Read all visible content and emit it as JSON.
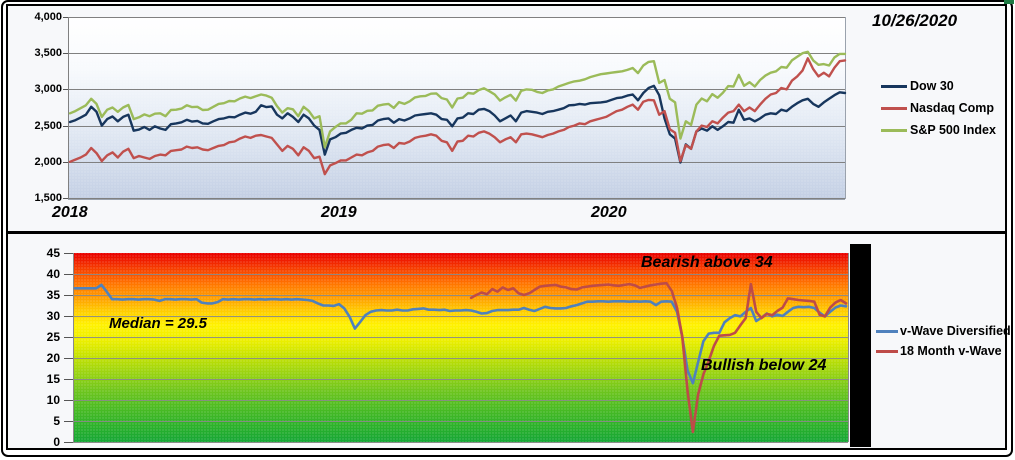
{
  "date_label": "10/26/2020",
  "accent_colors": {
    "dow": "#17365D",
    "nasdaq": "#C0504D",
    "sp500": "#9BBB59",
    "vwave_diversified": "#4F81BD",
    "vwave_18month": "#BE4B48",
    "gridline": "#808080",
    "panel_border": "#000000",
    "corner_mark_green": "#1F7A44"
  },
  "chart_data": [
    {
      "id": "index-chart",
      "type": "line",
      "title": "",
      "xlabel": "",
      "ylabel": "",
      "x_axis": {
        "labels": [
          "2018",
          "2019",
          "2020"
        ],
        "unit": "weeks"
      },
      "y_axis": {
        "tick_labels": [
          "4,000",
          "3,500",
          "3,000",
          "2,500",
          "2,000",
          "1,500"
        ],
        "tick_values": [
          4000,
          3500,
          3000,
          2500,
          2000,
          1500
        ],
        "ylim": [
          1500,
          4000
        ],
        "grid": true
      },
      "legend_position": "right",
      "plot_background_stops": [
        {
          "o": 0,
          "c": "#FFFFFF"
        },
        {
          "o": 0.28,
          "c": "#F8FAFD"
        },
        {
          "o": 0.6,
          "c": "#E3EAF4"
        },
        {
          "o": 1,
          "c": "#C3CFE4"
        }
      ],
      "series": [
        {
          "name": "Dow 30",
          "color": "#17365D",
          "values": [
            2550,
            2575,
            2610,
            2650,
            2760,
            2690,
            2500,
            2590,
            2625,
            2560,
            2620,
            2650,
            2430,
            2445,
            2480,
            2440,
            2490,
            2460,
            2440,
            2520,
            2530,
            2545,
            2580,
            2555,
            2565,
            2530,
            2525,
            2560,
            2590,
            2600,
            2620,
            2615,
            2650,
            2680,
            2665,
            2690,
            2780,
            2755,
            2765,
            2650,
            2600,
            2670,
            2620,
            2550,
            2650,
            2600,
            2500,
            2440,
            2100,
            2310,
            2340,
            2390,
            2400,
            2440,
            2470,
            2460,
            2500,
            2510,
            2570,
            2590,
            2600,
            2540,
            2590,
            2570,
            2600,
            2640,
            2650,
            2660,
            2670,
            2650,
            2590,
            2580,
            2490,
            2600,
            2610,
            2670,
            2660,
            2720,
            2730,
            2700,
            2640,
            2560,
            2600,
            2640,
            2560,
            2680,
            2700,
            2690,
            2680,
            2660,
            2690,
            2700,
            2720,
            2740,
            2780,
            2785,
            2800,
            2790,
            2810,
            2815,
            2820,
            2830,
            2855,
            2880,
            2890,
            2915,
            2930,
            2850,
            2950,
            3020,
            3050,
            2920,
            2600,
            2380,
            2320,
            1990,
            2240,
            2180,
            2420,
            2460,
            2430,
            2490,
            2440,
            2490,
            2550,
            2540,
            2720,
            2580,
            2600,
            2560,
            2600,
            2650,
            2670,
            2660,
            2720,
            2700,
            2760,
            2810,
            2850,
            2870,
            2800,
            2760,
            2820,
            2870,
            2920,
            2960,
            2950
          ]
        },
        {
          "name": "Nasdaq Comp",
          "color": "#C0504D",
          "values": [
            2000,
            2030,
            2060,
            2100,
            2190,
            2120,
            2010,
            2090,
            2130,
            2060,
            2140,
            2180,
            2050,
            2080,
            2060,
            2040,
            2080,
            2100,
            2090,
            2150,
            2160,
            2170,
            2210,
            2190,
            2200,
            2170,
            2160,
            2190,
            2220,
            2230,
            2270,
            2280,
            2320,
            2350,
            2330,
            2360,
            2370,
            2350,
            2330,
            2240,
            2150,
            2220,
            2180,
            2090,
            2200,
            2150,
            2050,
            2070,
            1830,
            1950,
            1980,
            2020,
            2020,
            2060,
            2100,
            2090,
            2130,
            2150,
            2210,
            2230,
            2240,
            2190,
            2260,
            2250,
            2280,
            2330,
            2350,
            2360,
            2380,
            2360,
            2290,
            2270,
            2150,
            2280,
            2290,
            2360,
            2350,
            2400,
            2420,
            2390,
            2340,
            2270,
            2310,
            2340,
            2270,
            2380,
            2390,
            2380,
            2360,
            2340,
            2370,
            2390,
            2420,
            2440,
            2480,
            2500,
            2530,
            2520,
            2560,
            2580,
            2600,
            2620,
            2660,
            2700,
            2720,
            2760,
            2790,
            2720,
            2830,
            2855,
            2850,
            2650,
            2700,
            2450,
            2400,
            2010,
            2230,
            2180,
            2420,
            2500,
            2480,
            2560,
            2530,
            2610,
            2680,
            2700,
            2790,
            2700,
            2750,
            2700,
            2790,
            2870,
            2930,
            2950,
            3020,
            3000,
            3120,
            3180,
            3260,
            3430,
            3280,
            3180,
            3230,
            3180,
            3300,
            3390,
            3400
          ]
        },
        {
          "name": "S&P 500 Index",
          "color": "#9BBB59",
          "values": [
            2670,
            2700,
            2740,
            2780,
            2870,
            2800,
            2620,
            2720,
            2750,
            2690,
            2750,
            2785,
            2590,
            2615,
            2655,
            2630,
            2665,
            2670,
            2630,
            2715,
            2720,
            2735,
            2780,
            2755,
            2760,
            2715,
            2720,
            2760,
            2800,
            2810,
            2840,
            2835,
            2875,
            2900,
            2880,
            2905,
            2930,
            2915,
            2885,
            2770,
            2680,
            2740,
            2725,
            2630,
            2760,
            2700,
            2600,
            2630,
            2200,
            2420,
            2480,
            2530,
            2530,
            2580,
            2670,
            2665,
            2705,
            2710,
            2775,
            2790,
            2800,
            2745,
            2825,
            2800,
            2835,
            2890,
            2905,
            2910,
            2940,
            2945,
            2880,
            2860,
            2750,
            2875,
            2885,
            2950,
            2940,
            2990,
            3015,
            2975,
            2930,
            2845,
            2890,
            2925,
            2845,
            2980,
            3000,
            2995,
            2965,
            2950,
            2985,
            3000,
            3040,
            3065,
            3090,
            3110,
            3120,
            3140,
            3170,
            3190,
            3210,
            3220,
            3230,
            3240,
            3250,
            3270,
            3295,
            3225,
            3330,
            3380,
            3390,
            3090,
            3130,
            2870,
            2820,
            2320,
            2560,
            2510,
            2790,
            2875,
            2835,
            2935,
            2885,
            2955,
            3045,
            3040,
            3200,
            3050,
            3100,
            3040,
            3130,
            3190,
            3230,
            3250,
            3310,
            3300,
            3400,
            3450,
            3500,
            3520,
            3400,
            3340,
            3350,
            3330,
            3440,
            3490,
            3490
          ]
        }
      ]
    },
    {
      "id": "v-wave-chart",
      "type": "line",
      "title": "",
      "y_axis": {
        "tick_labels": [
          "45",
          "40",
          "35",
          "30",
          "25",
          "20",
          "15",
          "10",
          "5",
          "0"
        ],
        "tick_values": [
          45,
          40,
          35,
          30,
          25,
          20,
          15,
          10,
          5,
          0
        ],
        "ylim": [
          0,
          45
        ],
        "grid": true
      },
      "legend_position": "right",
      "annotations": [
        {
          "id": "bearish",
          "text": "Bearish above 34",
          "y_value": 42
        },
        {
          "id": "median",
          "text": "Median = 29.5",
          "y_value": 28
        },
        {
          "id": "bullish",
          "text": "Bullish below 24",
          "y_value": 19
        }
      ],
      "plot_background_stops": [
        {
          "o": 0,
          "c": "#E80000"
        },
        {
          "o": 0.08,
          "c": "#F63C00"
        },
        {
          "o": 0.16,
          "c": "#FF7300"
        },
        {
          "o": 0.24,
          "c": "#FFA000"
        },
        {
          "o": 0.31,
          "c": "#FFCE00"
        },
        {
          "o": 0.38,
          "c": "#FFF200"
        },
        {
          "o": 0.46,
          "c": "#EDEF00"
        },
        {
          "o": 0.54,
          "c": "#C8E300"
        },
        {
          "o": 0.63,
          "c": "#9CD411"
        },
        {
          "o": 0.73,
          "c": "#6EC51E"
        },
        {
          "o": 0.83,
          "c": "#48BA24"
        },
        {
          "o": 0.92,
          "c": "#2BB12B"
        },
        {
          "o": 1,
          "c": "#16A636"
        }
      ],
      "series": [
        {
          "name": "v-Wave Diversified",
          "color": "#4F81BD",
          "start_index": 0,
          "values": [
            36.6,
            36.6,
            36.6,
            36.6,
            36.6,
            37.4,
            35.8,
            34.0,
            34.0,
            33.9,
            34.0,
            34.0,
            33.9,
            34.0,
            34.0,
            33.9,
            33.6,
            34.0,
            34.0,
            33.9,
            34.0,
            34.0,
            33.9,
            34.0,
            33.2,
            33.0,
            33.0,
            33.3,
            34.0,
            33.9,
            34.0,
            33.9,
            34.0,
            34.0,
            33.9,
            34.0,
            33.9,
            34.0,
            34.0,
            33.9,
            34.0,
            33.9,
            34.0,
            33.9,
            33.8,
            33.6,
            33.0,
            32.5,
            32.5,
            32.4,
            32.8,
            31.8,
            29.8,
            27.0,
            28.6,
            30.2,
            31.0,
            31.3,
            31.4,
            31.3,
            31.3,
            31.5,
            31.3,
            31.3,
            31.6,
            31.7,
            31.8,
            31.5,
            31.5,
            31.4,
            31.5,
            31.2,
            31.3,
            31.3,
            31.4,
            31.3,
            31.0,
            30.6,
            30.7,
            31.2,
            31.4,
            31.4,
            31.4,
            31.5,
            31.5,
            31.9,
            31.5,
            31.2,
            31.7,
            32.2,
            31.9,
            31.8,
            31.8,
            31.9,
            32.3,
            32.6,
            33.0,
            33.4,
            33.4,
            33.5,
            33.5,
            33.4,
            33.5,
            33.5,
            33.5,
            33.4,
            33.5,
            33.4,
            33.5,
            33.4,
            32.6,
            33.4,
            33.5,
            33.4,
            31.0,
            25.0,
            17.0,
            14.0,
            19.0,
            24.0,
            25.8,
            26.0,
            26.0,
            28.5,
            29.5,
            30.2,
            29.9,
            31.0,
            31.9,
            28.8,
            29.6,
            30.6,
            29.9,
            30.3,
            30.0,
            31.0,
            31.9,
            32.2,
            32.1,
            32.2,
            31.9,
            30.8,
            29.9,
            31.0,
            32.0,
            32.5,
            32.3
          ]
        },
        {
          "name": "18 Month v-Wave",
          "color": "#BE4B48",
          "start_index": 75,
          "values": [
            34.3,
            35.0,
            35.6,
            35.2,
            36.4,
            35.8,
            36.8,
            36.2,
            36.6,
            35.4,
            35.0,
            35.4,
            36.2,
            37.0,
            37.2,
            37.3,
            37.4,
            37.0,
            36.8,
            36.4,
            36.3,
            36.8,
            37.0,
            37.2,
            37.3,
            37.4,
            37.5,
            37.3,
            37.2,
            37.4,
            37.6,
            37.3,
            36.7,
            37.0,
            37.3,
            37.5,
            37.7,
            37.8,
            36.0,
            32.0,
            25.0,
            12.0,
            2.4,
            11.3,
            16.1,
            19.3,
            22.9,
            25.3,
            25.4,
            25.5,
            26.0,
            27.8,
            29.5,
            37.6,
            31.0,
            29.5,
            30.5,
            30.2,
            31.2,
            32.0,
            34.2,
            34.0,
            33.8,
            33.7,
            33.6,
            33.4,
            30.3,
            29.9,
            32.0,
            33.2,
            33.8,
            33.0
          ]
        }
      ]
    }
  ]
}
